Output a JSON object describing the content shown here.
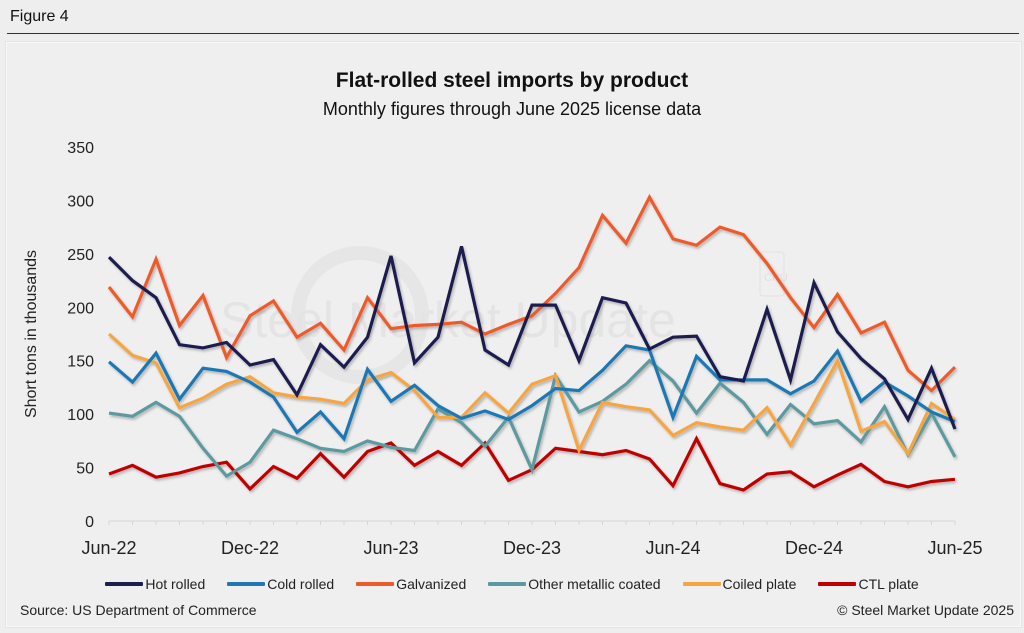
{
  "figure_label": "Figure 4",
  "watermark": "Steel Market Update",
  "watermark_badge": "CRU",
  "source": "Source: US Department of Commerce",
  "copyright": "© Steel Market Update 2025",
  "chart_data": {
    "type": "line",
    "title": "Flat-rolled steel imports by product",
    "subtitle": "Monthly figures through June 2025 license data",
    "xlabel": "",
    "ylabel": "Short tons in thousands",
    "ylim": [
      0,
      350
    ],
    "yticks": [
      0,
      50,
      100,
      150,
      200,
      250,
      300,
      350
    ],
    "grid": false,
    "legend_position": "bottom",
    "x": [
      "Jun-22",
      "Jul-22",
      "Aug-22",
      "Sep-22",
      "Oct-22",
      "Nov-22",
      "Dec-22",
      "Jan-23",
      "Feb-23",
      "Mar-23",
      "Apr-23",
      "May-23",
      "Jun-23",
      "Jul-23",
      "Aug-23",
      "Sep-23",
      "Oct-23",
      "Nov-23",
      "Dec-23",
      "Jan-24",
      "Feb-24",
      "Mar-24",
      "Apr-24",
      "May-24",
      "Jun-24",
      "Jul-24",
      "Aug-24",
      "Sep-24",
      "Oct-24",
      "Nov-24",
      "Dec-24",
      "Jan-25",
      "Feb-25",
      "Mar-25",
      "Apr-25",
      "May-25",
      "Jun-25"
    ],
    "xtick_labels": [
      "Jun-22",
      "Dec-22",
      "Jun-23",
      "Dec-23",
      "Jun-24",
      "Dec-24",
      "Jun-25"
    ],
    "series": [
      {
        "name": "Hot rolled",
        "color": "#1b1f4f",
        "values": [
          247,
          225,
          209,
          165,
          162,
          167,
          146,
          151,
          118,
          165,
          144,
          172,
          248,
          148,
          172,
          257,
          160,
          146,
          202,
          202,
          150,
          209,
          204,
          161,
          172,
          173,
          135,
          131,
          198,
          132,
          223,
          177,
          152,
          133,
          95,
          143,
          86
        ]
      },
      {
        "name": "Cold rolled",
        "color": "#1f78b4",
        "values": [
          149,
          130,
          157,
          114,
          143,
          140,
          130,
          116,
          83,
          102,
          77,
          142,
          112,
          127,
          108,
          96,
          103,
          95,
          108,
          124,
          122,
          141,
          164,
          160,
          97,
          154,
          132,
          132,
          132,
          119,
          131,
          159,
          112,
          130,
          117,
          102,
          93
        ]
      },
      {
        "name": "Galvanized",
        "color": "#ef5a2a",
        "values": [
          219,
          191,
          245,
          183,
          211,
          153,
          192,
          206,
          172,
          185,
          160,
          209,
          180,
          183,
          184,
          186,
          175,
          184,
          192,
          213,
          237,
          286,
          260,
          303,
          264,
          258,
          275,
          268,
          241,
          209,
          181,
          212,
          176,
          186,
          141,
          122,
          144
        ]
      },
      {
        "name": "Other metallic coated",
        "color": "#5b9aa0",
        "values": [
          101,
          98,
          111,
          98,
          68,
          42,
          55,
          85,
          77,
          68,
          65,
          75,
          69,
          66,
          105,
          92,
          70,
          97,
          48,
          136,
          102,
          112,
          128,
          150,
          131,
          101,
          129,
          111,
          81,
          109,
          91,
          94,
          74,
          107,
          62,
          101,
          60
        ]
      },
      {
        "name": "Coiled plate",
        "color": "#f7a541",
        "values": [
          175,
          155,
          148,
          106,
          115,
          128,
          135,
          120,
          116,
          114,
          110,
          132,
          139,
          122,
          97,
          97,
          120,
          101,
          128,
          136,
          66,
          111,
          107,
          104,
          80,
          92,
          88,
          85,
          106,
          71,
          110,
          150,
          84,
          93,
          63,
          110,
          95
        ]
      },
      {
        "name": "CTL plate",
        "color": "#c00000",
        "values": [
          44,
          52,
          41,
          45,
          51,
          55,
          30,
          51,
          40,
          63,
          41,
          65,
          73,
          52,
          65,
          52,
          73,
          38,
          48,
          68,
          65,
          62,
          66,
          58,
          33,
          77,
          35,
          29,
          44,
          46,
          32,
          43,
          53,
          37,
          32,
          37,
          39
        ]
      }
    ]
  }
}
